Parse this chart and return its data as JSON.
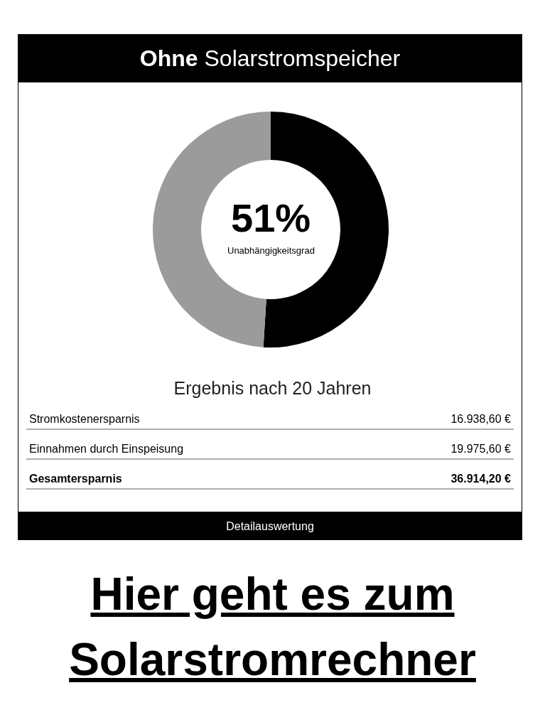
{
  "chart_data": {
    "type": "donut",
    "title": "Ohne Solarstromspeicher",
    "categories": [
      null,
      null
    ],
    "values": [
      51,
      49
    ],
    "colors": [
      "#000000",
      "#9b9b9b"
    ],
    "value_labels": [
      "51%",
      null
    ],
    "annotations": [
      "Unabhängigkeitsgrad",
      "Ergebnis nach 20 Jahren",
      "Stromkostenersparnis",
      "16.938,60 €",
      "Einnahmen durch Einspeisung",
      "19.975,60 €",
      "Gesamtersparnis",
      "36.914,20 €",
      "Detailauswertung",
      "Hier geht es zum Solarstromrechner"
    ],
    "legend": false
  }
}
